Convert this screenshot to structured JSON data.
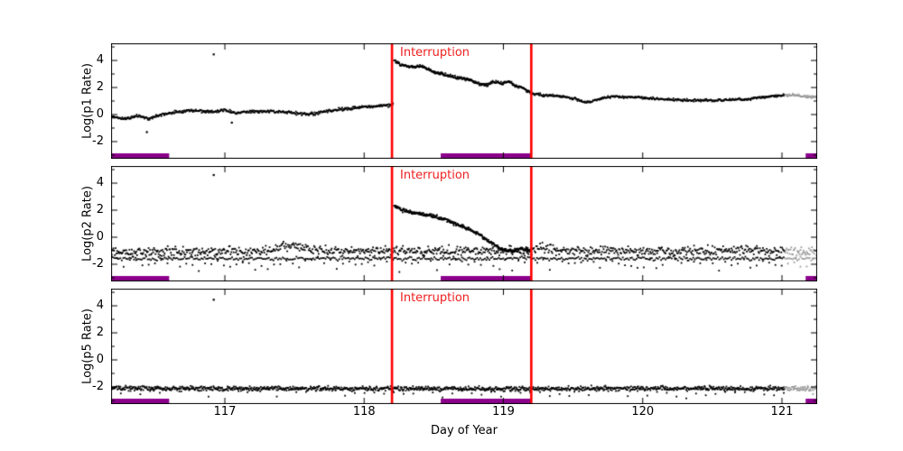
{
  "xlabel": "Day of Year",
  "interruption_label": "Interruption",
  "colors": {
    "points": "#000000",
    "grey_tail": "#9a9a9a",
    "interruption_line": "#ff0000",
    "interruption_text": "#f02020",
    "coverage_bar": "#8b008b",
    "axis": "#000000",
    "background": "#ffffff"
  },
  "chart_data": {
    "type": "scatter",
    "xlabel": "Day of Year",
    "xlim": [
      116.183,
      121.253
    ],
    "ylim": [
      -3.27,
      5.27
    ],
    "x_ticks": [
      117,
      118,
      119,
      120,
      121
    ],
    "y_ticks": [
      -2,
      0,
      2,
      4
    ],
    "y_minor_ticks": [
      -3,
      -1,
      1,
      3,
      5
    ],
    "grid": false,
    "annotations": {
      "interruption_label": "Interruption",
      "lines_x": [
        118.2,
        119.2
      ]
    },
    "coverage_bars": [
      [
        116.183,
        116.6
      ],
      [
        118.55,
        119.2
      ],
      [
        121.17,
        121.253
      ]
    ],
    "grey_after": 121.02,
    "panels": [
      {
        "ylabel": "Log(p1 Rate)",
        "series": [
          {
            "name": "p1-pre-trend",
            "sigma": 0.055,
            "step": 0.0042,
            "anchors": [
              [
                116.183,
                -0.12
              ],
              [
                116.28,
                -0.32
              ],
              [
                116.38,
                -0.12
              ],
              [
                116.45,
                -0.3
              ],
              [
                116.55,
                0.0
              ],
              [
                116.67,
                0.22
              ],
              [
                116.78,
                0.3
              ],
              [
                116.9,
                0.22
              ],
              [
                117.0,
                0.3
              ],
              [
                117.08,
                0.12
              ],
              [
                117.18,
                0.2
              ],
              [
                117.3,
                0.26
              ],
              [
                117.42,
                0.2
              ],
              [
                117.52,
                0.1
              ],
              [
                117.62,
                0.06
              ],
              [
                117.72,
                0.22
              ],
              [
                117.82,
                0.38
              ],
              [
                117.95,
                0.5
              ],
              [
                118.05,
                0.6
              ],
              [
                118.21,
                0.72
              ]
            ]
          },
          {
            "name": "p1-interruption-decay",
            "sigma": 0.05,
            "step": 0.003,
            "anchors": [
              [
                118.215,
                4.05
              ],
              [
                118.26,
                3.7
              ],
              [
                118.32,
                3.55
              ],
              [
                118.42,
                3.55
              ],
              [
                118.5,
                3.15
              ],
              [
                118.6,
                2.9
              ],
              [
                118.68,
                2.7
              ],
              [
                118.75,
                2.62
              ],
              [
                118.82,
                2.3
              ],
              [
                118.88,
                2.2
              ],
              [
                118.93,
                2.42
              ],
              [
                118.99,
                2.3
              ],
              [
                119.04,
                2.45
              ],
              [
                119.09,
                2.1
              ],
              [
                119.14,
                2.0
              ],
              [
                119.17,
                1.75
              ],
              [
                119.2,
                1.6
              ]
            ]
          },
          {
            "name": "p1-post-trend",
            "sigma": 0.045,
            "step": 0.0042,
            "anchors": [
              [
                119.2,
                1.55
              ],
              [
                119.3,
                1.42
              ],
              [
                119.42,
                1.35
              ],
              [
                119.52,
                1.15
              ],
              [
                119.58,
                0.9
              ],
              [
                119.65,
                1.0
              ],
              [
                119.72,
                1.25
              ],
              [
                119.8,
                1.33
              ],
              [
                119.92,
                1.28
              ],
              [
                120.05,
                1.2
              ],
              [
                120.18,
                1.12
              ],
              [
                120.32,
                1.06
              ],
              [
                120.5,
                1.04
              ],
              [
                120.62,
                1.08
              ],
              [
                120.75,
                1.15
              ],
              [
                120.88,
                1.3
              ],
              [
                121.0,
                1.42
              ],
              [
                121.1,
                1.42
              ],
              [
                121.18,
                1.3
              ],
              [
                121.253,
                1.28
              ]
            ]
          }
        ],
        "outliers": [
          [
            116.92,
            4.45
          ],
          [
            116.44,
            -1.3
          ],
          [
            117.05,
            -0.6
          ]
        ]
      },
      {
        "ylabel": "Log(p2 Rate)",
        "series": [
          {
            "name": "p2-upper-band",
            "sigma": 0.17,
            "step": 0.0055,
            "anchors": [
              [
                116.183,
                -1.08
              ],
              [
                117.25,
                -1.05
              ],
              [
                117.38,
                -0.75
              ],
              [
                117.48,
                -0.62
              ],
              [
                117.58,
                -0.8
              ],
              [
                117.7,
                -1.0
              ],
              [
                118.2,
                -1.02
              ],
              [
                118.22,
                -1.02
              ],
              [
                119.2,
                -1.0
              ],
              [
                119.27,
                -0.85
              ],
              [
                119.45,
                -1.0
              ],
              [
                119.8,
                -1.0
              ],
              [
                120.2,
                -1.05
              ],
              [
                120.6,
                -1.0
              ],
              [
                121.0,
                -1.05
              ],
              [
                121.253,
                -1.1
              ]
            ]
          },
          {
            "name": "p2-lower-band",
            "sigma": 0.07,
            "step": 0.011,
            "anchors": [
              [
                116.183,
                -1.58
              ],
              [
                121.253,
                -1.58
              ]
            ]
          },
          {
            "name": "p2-sparse-low",
            "sigma": 0.25,
            "step": 0.045,
            "anchors": [
              [
                116.183,
                -1.95
              ],
              [
                121.253,
                -1.95
              ]
            ]
          },
          {
            "name": "p2-interruption-decay",
            "sigma": 0.06,
            "step": 0.0028,
            "anchors": [
              [
                118.215,
                2.35
              ],
              [
                118.27,
                2.0
              ],
              [
                118.35,
                1.82
              ],
              [
                118.45,
                1.65
              ],
              [
                118.52,
                1.5
              ],
              [
                118.6,
                1.22
              ],
              [
                118.68,
                0.9
              ],
              [
                118.75,
                0.62
              ],
              [
                118.82,
                0.25
              ],
              [
                118.88,
                -0.2
              ],
              [
                118.94,
                -0.62
              ],
              [
                119.0,
                -0.9
              ],
              [
                119.06,
                -1.05
              ],
              [
                119.12,
                -0.85
              ],
              [
                119.2,
                -0.95
              ]
            ]
          }
        ],
        "outliers": [
          [
            116.92,
            4.6
          ]
        ]
      },
      {
        "ylabel": "Log(p5 Rate)",
        "series": [
          {
            "name": "p5-band",
            "sigma": 0.085,
            "step": 0.0042,
            "anchors": [
              [
                116.183,
                -2.1
              ],
              [
                117.0,
                -2.12
              ],
              [
                118.0,
                -2.12
              ],
              [
                119.0,
                -2.15
              ],
              [
                120.0,
                -2.12
              ],
              [
                121.253,
                -2.12
              ]
            ]
          },
          {
            "name": "p5-sparse-low",
            "sigma": 0.18,
            "step": 0.07,
            "anchors": [
              [
                116.183,
                -2.4
              ],
              [
                121.253,
                -2.4
              ]
            ]
          }
        ],
        "outliers": [
          [
            116.92,
            4.45
          ]
        ]
      }
    ]
  }
}
